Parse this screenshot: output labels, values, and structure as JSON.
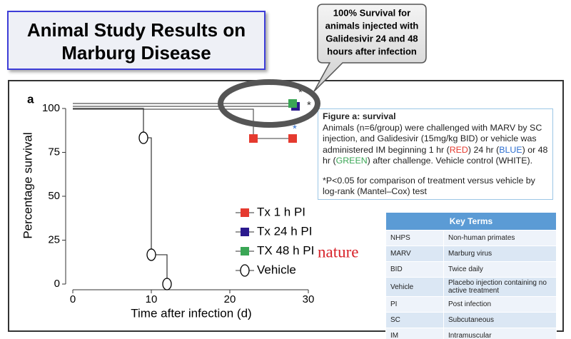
{
  "title": [
    "Animal Study Results on",
    "Marburg Disease"
  ],
  "callout": [
    "100% Survival for",
    "animals injected with",
    "Galidesivir 24 and 48",
    "hours after infection"
  ],
  "chart_data": {
    "type": "step",
    "panel_label": "a",
    "x_label": "Time after infection (d)",
    "y_label": "Percentage survival",
    "xlim": [
      0,
      30
    ],
    "ylim": [
      0,
      100
    ],
    "xticks": [
      0,
      10,
      20,
      30
    ],
    "yticks": [
      0,
      25,
      50,
      75,
      100
    ],
    "series": [
      {
        "name": "Tx 1 h PI",
        "color": "#e53a2f",
        "marker": "square",
        "x": [
          0,
          23,
          28
        ],
        "values": [
          100,
          83.3,
          83.3
        ]
      },
      {
        "name": "Tx 24 h PI",
        "color": "#2b1a8e",
        "marker": "square",
        "x": [
          0,
          28
        ],
        "values": [
          100,
          100
        ]
      },
      {
        "name": "TX 48 h PI",
        "color": "#3aa655",
        "marker": "square",
        "x": [
          0,
          28
        ],
        "values": [
          100,
          100
        ]
      },
      {
        "name": "Vehicle",
        "color": "#000000",
        "marker": "circle",
        "x": [
          0,
          9,
          10,
          12
        ],
        "values": [
          100,
          83.3,
          16.7,
          0
        ]
      }
    ],
    "annotations": [
      "*",
      "*",
      "*"
    ]
  },
  "brand": "nature",
  "caption": {
    "heading": "Figure a: survival",
    "body": [
      "Animals (n=6/group) were challenged with MARV by SC injection, and Galidesivir (15mg/kg BID) or vehicle was administered IM beginning 1 hr (",
      "RED",
      ") 24 hr (",
      "BLUE",
      ") or 48 hr (",
      "GREEN",
      ") after challenge. Vehicle control (WHITE)."
    ],
    "footnote": "*P<0.05 for comparison of treatment versus vehicle by log-rank (Mantel–Cox) test"
  },
  "table": {
    "header": "Key Terms",
    "rows": [
      [
        "NHPS",
        "Non-human primates"
      ],
      [
        "MARV",
        "Marburg virus"
      ],
      [
        "BID",
        "Twice daily"
      ],
      [
        "Vehicle",
        "Placebo injection containing no active treatment"
      ],
      [
        "PI",
        "Post infection"
      ],
      [
        "SC",
        "Subcutaneous"
      ],
      [
        "IM",
        "Intramuscular"
      ]
    ]
  }
}
